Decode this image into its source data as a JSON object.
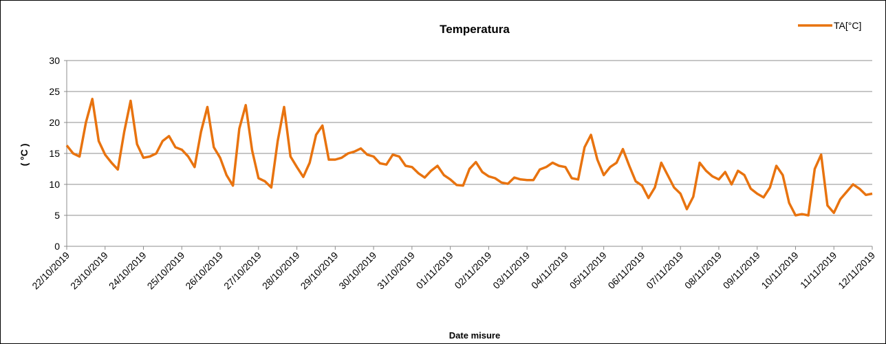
{
  "chart_data": {
    "type": "line",
    "title": "Temperatura",
    "x_label": "Date misure",
    "y_label": "( °C )",
    "categories": [
      "22/10/2019",
      null,
      null,
      null,
      null,
      null,
      "23/10/2019",
      null,
      null,
      null,
      null,
      null,
      "24/10/2019",
      null,
      null,
      null,
      null,
      null,
      "25/10/2019",
      null,
      null,
      null,
      null,
      null,
      "26/10/2019",
      null,
      null,
      null,
      null,
      null,
      "27/10/2019",
      null,
      null,
      null,
      null,
      null,
      "28/10/2019",
      null,
      null,
      null,
      null,
      null,
      "29/10/2019",
      null,
      null,
      null,
      null,
      null,
      "30/10/2019",
      null,
      null,
      null,
      null,
      null,
      "31/10/2019",
      null,
      null,
      null,
      null,
      null,
      "01/11/2019",
      null,
      null,
      null,
      null,
      null,
      "02/11/2019",
      null,
      null,
      null,
      null,
      null,
      "03/11/2019",
      null,
      null,
      null,
      null,
      null,
      "04/11/2019",
      null,
      null,
      null,
      null,
      null,
      "05/11/2019",
      null,
      null,
      null,
      null,
      null,
      "06/11/2019",
      null,
      null,
      null,
      null,
      null,
      "07/11/2019",
      null,
      null,
      null,
      null,
      null,
      "08/11/2019",
      null,
      null,
      null,
      null,
      null,
      "09/11/2019",
      null,
      null,
      null,
      null,
      null,
      "10/11/2019",
      null,
      null,
      null,
      null,
      null,
      "11/11/2019",
      null,
      null,
      null,
      null,
      null,
      "12/11/2019"
    ],
    "series": [
      {
        "name": "TA[°C]",
        "color": "#e8730f",
        "values": [
          16.3,
          15,
          14.5,
          20,
          23.8,
          17,
          14.8,
          13.5,
          12.4,
          18.5,
          23.5,
          16.5,
          14.3,
          14.5,
          15,
          17,
          17.8,
          16,
          15.6,
          14.5,
          12.8,
          18.5,
          22.5,
          16,
          14.3,
          11.5,
          9.8,
          19,
          22.8,
          15.5,
          11,
          10.5,
          9.5,
          17,
          22.5,
          14.5,
          12.8,
          11.2,
          13.5,
          18,
          19.5,
          14,
          14,
          14.3,
          15,
          15.3,
          15.8,
          14.8,
          14.5,
          13.4,
          13.2,
          14.8,
          14.5,
          13,
          12.8,
          11.8,
          11.1,
          12.2,
          13,
          11.5,
          10.8,
          9.9,
          9.8,
          12.5,
          13.6,
          12,
          11.3,
          11,
          10.3,
          10.1,
          11.1,
          10.8,
          10.7,
          10.7,
          12.4,
          12.8,
          13.5,
          13,
          12.8,
          11,
          10.8,
          16,
          18,
          14,
          11.5,
          12.8,
          13.5,
          15.7,
          13,
          10.5,
          9.8,
          7.8,
          9.5,
          13.5,
          11.5,
          9.5,
          8.5,
          6,
          8,
          13.5,
          12.2,
          11.3,
          10.8,
          12,
          10,
          12.2,
          11.5,
          9.3,
          8.5,
          7.9,
          9.5,
          13,
          11.5,
          7,
          5,
          5.2,
          5,
          12.5,
          14.8,
          6.6,
          5.4,
          7.6,
          8.8,
          10,
          9.3,
          8.3,
          8.5
        ]
      }
    ],
    "ylim": [
      0,
      30
    ],
    "yticks": [
      0,
      5,
      10,
      15,
      20,
      25,
      30
    ],
    "grid": true,
    "legend": "top-right"
  }
}
